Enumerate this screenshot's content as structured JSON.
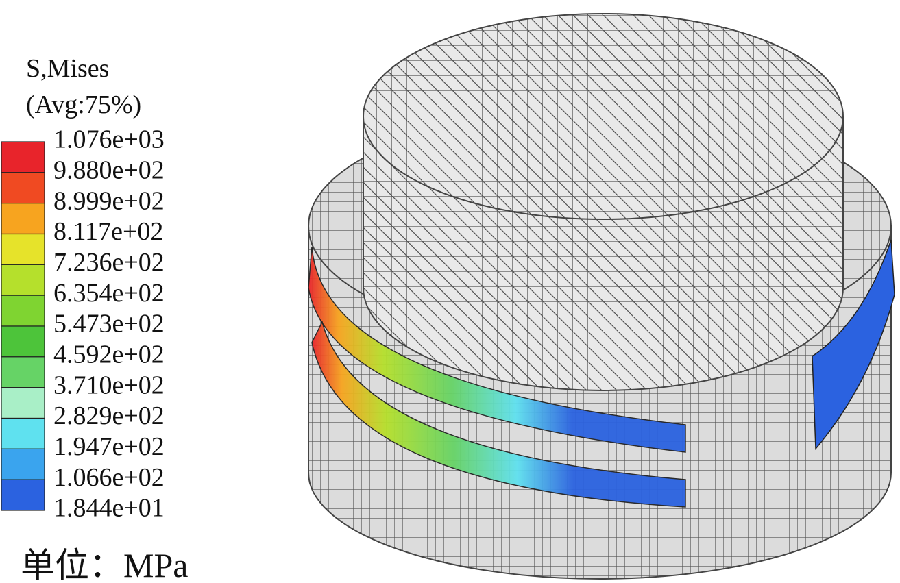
{
  "legend": {
    "title": "S,Mises",
    "subtitle": "(Avg:75%)",
    "labels": [
      "1.076e+03",
      "9.880e+02",
      "8.999e+02",
      "8.117e+02",
      "7.236e+02",
      "6.354e+02",
      "5.473e+02",
      "4.592e+02",
      "3.710e+02",
      "2.829e+02",
      "1.947e+02",
      "1.066e+02",
      "1.844e+01"
    ],
    "colors": [
      "#e8242b",
      "#f04a22",
      "#f7a41f",
      "#e6e32a",
      "#b5e02c",
      "#7fd431",
      "#4dc43a",
      "#66d366",
      "#a9efc7",
      "#5fe1ef",
      "#3aa4ee",
      "#2b62e0"
    ]
  },
  "unit": "单位：MPa"
}
